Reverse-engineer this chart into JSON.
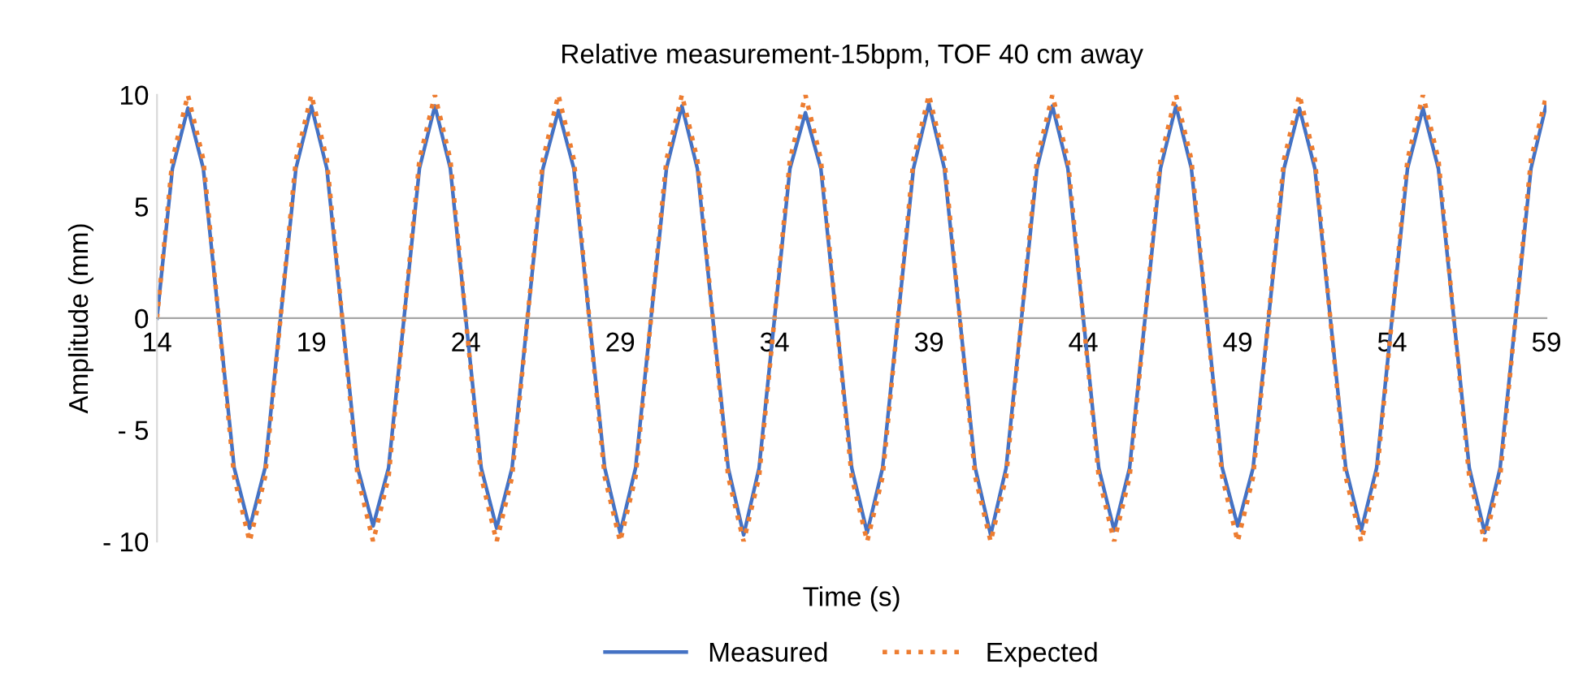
{
  "chart_data": {
    "type": "line",
    "title": "Relative measurement-15bpm, TOF 40 cm away",
    "xlabel": "Time (s)",
    "ylabel": "Amplitude (mm)",
    "x": [
      14,
      14.5,
      15,
      15.5,
      16,
      16.5,
      17,
      17.5,
      18,
      18.5,
      19,
      19.5,
      20,
      20.5,
      21,
      21.5,
      22,
      22.5,
      23,
      23.5,
      24,
      24.5,
      25,
      25.5,
      26,
      26.5,
      27,
      27.5,
      28,
      28.5,
      29,
      29.5,
      30,
      30.5,
      31,
      31.5,
      32,
      32.5,
      33,
      33.5,
      34,
      34.5,
      35,
      35.5,
      36,
      36.5,
      37,
      37.5,
      38,
      38.5,
      39,
      39.5,
      40,
      40.5,
      41,
      41.5,
      42,
      42.5,
      43,
      43.5,
      44,
      44.5,
      45,
      45.5,
      46,
      46.5,
      47,
      47.5,
      48,
      48.5,
      49,
      49.5,
      50,
      50.5,
      51,
      51.5,
      52,
      52.5,
      53,
      53.5,
      54,
      54.5,
      55,
      55.5,
      56,
      56.5,
      57,
      57.5,
      58,
      58.5,
      59
    ],
    "series": [
      {
        "name": "Measured",
        "color": "#4472c4",
        "line_style": "solid",
        "values": [
          0,
          6.7,
          9.4,
          6.7,
          0,
          -6.7,
          -9.4,
          -6.7,
          0,
          6.7,
          9.5,
          6.7,
          0,
          -6.7,
          -9.3,
          -6.7,
          0,
          6.7,
          9.5,
          6.7,
          0,
          -6.7,
          -9.4,
          -6.7,
          0,
          6.7,
          9.3,
          6.7,
          0,
          -6.7,
          -9.6,
          -6.7,
          0,
          6.7,
          9.5,
          6.7,
          0,
          -6.7,
          -9.7,
          -6.7,
          0,
          6.7,
          9.2,
          6.7,
          0,
          -6.7,
          -9.6,
          -6.7,
          0,
          6.7,
          9.6,
          6.7,
          0,
          -6.7,
          -9.7,
          -6.7,
          0,
          6.7,
          9.5,
          6.7,
          0,
          -6.7,
          -9.5,
          -6.7,
          0,
          6.7,
          9.5,
          6.7,
          0,
          -6.7,
          -9.3,
          -6.7,
          0,
          6.7,
          9.4,
          6.7,
          0,
          -6.7,
          -9.5,
          -6.7,
          0,
          6.7,
          9.4,
          6.7,
          0,
          -6.7,
          -9.6,
          -6.7,
          0,
          6.7,
          9.6
        ]
      },
      {
        "name": "Expected",
        "color": "#ed7d31",
        "line_style": "dotted",
        "values": [
          0,
          7.1,
          10,
          7.1,
          0,
          -7.1,
          -10,
          -7.1,
          0,
          7.1,
          10,
          7.1,
          0,
          -7.1,
          -10,
          -7.1,
          0,
          7.1,
          10,
          7.1,
          0,
          -7.1,
          -10,
          -7.1,
          0,
          7.1,
          10,
          7.1,
          0,
          -7.1,
          -10,
          -7.1,
          0,
          7.1,
          10,
          7.1,
          0,
          -7.1,
          -10,
          -7.1,
          0,
          7.1,
          10,
          7.1,
          0,
          -7.1,
          -10,
          -7.1,
          0,
          7.1,
          10,
          7.1,
          0,
          -7.1,
          -10,
          -7.1,
          0,
          7.1,
          10,
          7.1,
          0,
          -7.1,
          -10,
          -7.1,
          0,
          7.1,
          10,
          7.1,
          0,
          -7.1,
          -10,
          -7.1,
          0,
          7.1,
          10,
          7.1,
          0,
          -7.1,
          -10,
          -7.1,
          0,
          7.1,
          10,
          7.1,
          0,
          -7.1,
          -10,
          -7.1,
          0,
          7.1,
          10
        ]
      }
    ],
    "xlim": [
      14,
      59
    ],
    "xticks": [
      14,
      19,
      24,
      29,
      34,
      39,
      44,
      49,
      54,
      59
    ],
    "ylim": [
      -10,
      10
    ],
    "yticks": [
      {
        "value": -10,
        "label": "- 10"
      },
      {
        "value": -5,
        "label": "- 5"
      },
      0,
      5,
      10
    ],
    "grid": false,
    "legend": "bottom",
    "marker": "none"
  }
}
